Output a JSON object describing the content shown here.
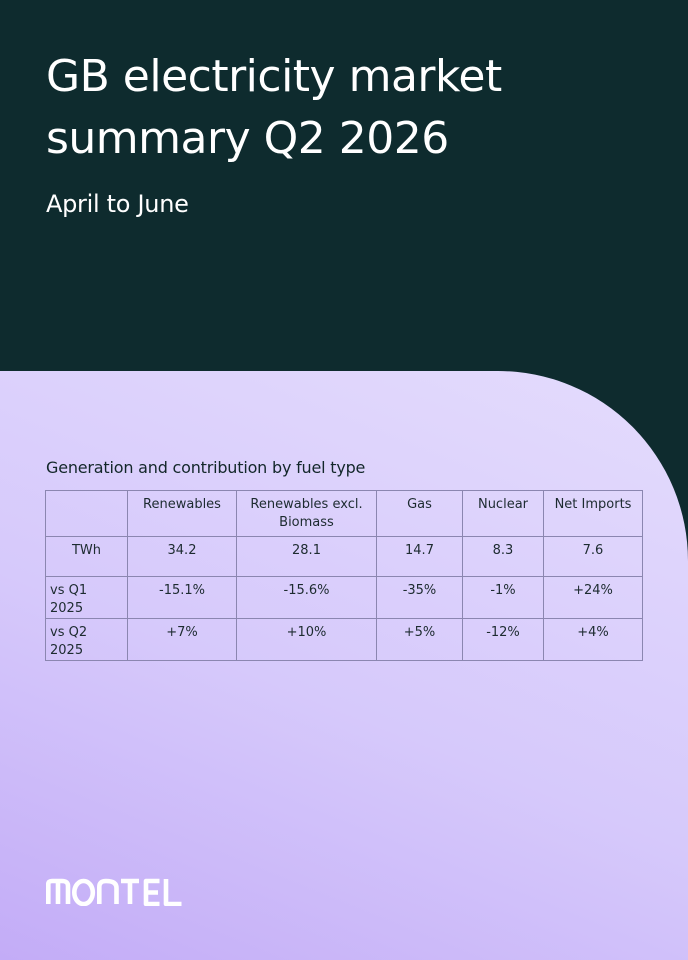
{
  "header": {
    "title": "GB electricity market summary Q2 2026",
    "subtitle": "April to June"
  },
  "section": {
    "title": "Generation and contribution by fuel type"
  },
  "table": {
    "columns": [
      "",
      "Renewables",
      "Renewables excl. Biomass",
      "Gas",
      "Nuclear",
      "Net Imports"
    ],
    "rows": [
      {
        "label": "TWh",
        "values": [
          "34.2",
          "28.1",
          "14.7",
          "8.3",
          "7.6"
        ]
      },
      {
        "label": "vs Q1 2025",
        "values": [
          "-15.1%",
          "-15.6%",
          "-35%",
          "-1%",
          "+24%"
        ]
      },
      {
        "label": "vs Q2 2025",
        "values": [
          "+7%",
          "+10%",
          "+5%",
          "-12%",
          "+4%"
        ]
      }
    ]
  },
  "brand": {
    "logo_text": "MONTEL"
  },
  "colors": {
    "header_bg": "#0e2b2e",
    "panel_light": "#e4dcfd",
    "panel_dark": "#c3acf7",
    "table_border": "#8b86b0",
    "text_dark": "#13272a"
  }
}
